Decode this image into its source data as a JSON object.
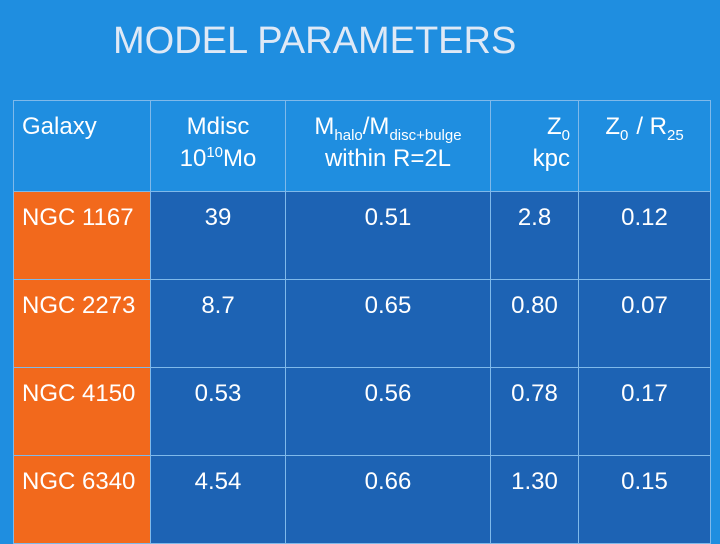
{
  "title": "MODEL PARAMETERS",
  "table": {
    "header": [
      {
        "text": "Galaxy"
      },
      {
        "line1": "Mdisc",
        "base": "10",
        "sup": "10",
        "unit": "Mo"
      },
      {
        "m1": "M",
        "sub1": "halo",
        "m2": "/M",
        "sub2": "disc+bulge",
        "line2": "within R=2L"
      },
      {
        "z": "Z",
        "sub": "0",
        "line2": "kpc"
      },
      {
        "z": "Z",
        "sub": "0",
        "r": "/ R",
        "rsub": "25"
      }
    ],
    "rows": [
      [
        "NGC 1167",
        "39",
        "0.51",
        "2.8",
        "0.12"
      ],
      [
        "NGC 2273",
        "8.7",
        "0.65",
        "0.80",
        "0.07"
      ],
      [
        "NGC 4150",
        "0.53",
        "0.56",
        "0.78",
        "0.17"
      ],
      [
        "NGC 6340",
        "4.54",
        "0.66",
        "1.30",
        "0.15"
      ]
    ]
  }
}
